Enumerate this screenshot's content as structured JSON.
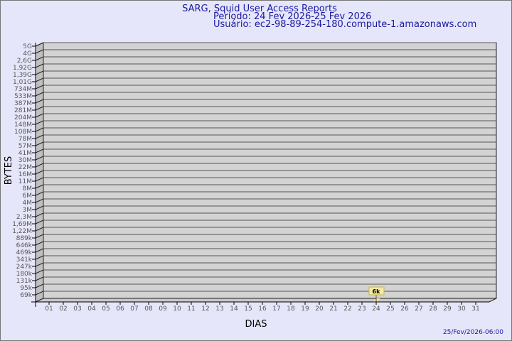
{
  "chart_data": {
    "type": "bar",
    "title": "SARG, Squid User Access Reports",
    "subtitle_period": "Período: 24 Fev 2026-25 Fev 2026",
    "subtitle_user": "Usuário: ec2-98-89-254-180.compute-1.amazonaws.com",
    "xlabel": "DIAS",
    "ylabel": "BYTES",
    "y_scale": "log",
    "y_tick_labels": [
      "5G",
      "4G",
      "2,6G",
      "1,92G",
      "1,39G",
      "1,01G",
      "734M",
      "533M",
      "387M",
      "281M",
      "204M",
      "148M",
      "108M",
      "78M",
      "57M",
      "41M",
      "30M",
      "22M",
      "16M",
      "11M",
      "8M",
      "6M",
      "4M",
      "3M",
      "2,3M",
      "1,69M",
      "1,22M",
      "889k",
      "646k",
      "469k",
      "341k",
      "247k",
      "180k",
      "131k",
      "95k",
      "69k"
    ],
    "categories": [
      "01",
      "02",
      "03",
      "04",
      "05",
      "06",
      "07",
      "08",
      "09",
      "10",
      "11",
      "12",
      "13",
      "14",
      "15",
      "16",
      "17",
      "18",
      "19",
      "20",
      "21",
      "22",
      "23",
      "24",
      "25",
      "26",
      "27",
      "28",
      "29",
      "30",
      "31"
    ],
    "series": [
      {
        "points": [
          {
            "x": "24",
            "value": 6000,
            "label": "6k"
          }
        ]
      }
    ],
    "grid": true,
    "bar_color": "#fce48c",
    "wall_color": "#d3d3d3",
    "footer": "25/Fev/2026-06:00"
  }
}
